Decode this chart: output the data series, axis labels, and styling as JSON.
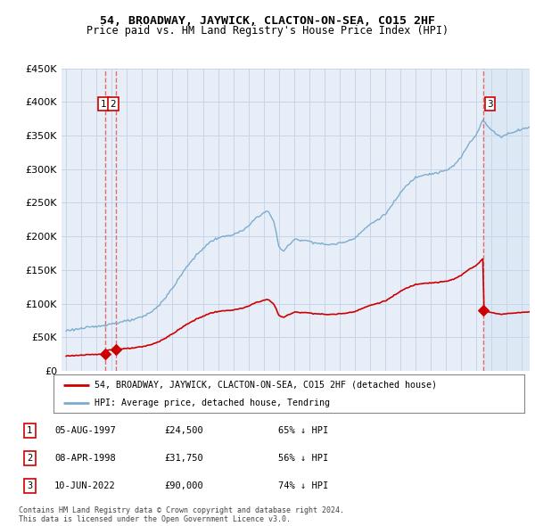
{
  "title": "54, BROADWAY, JAYWICK, CLACTON-ON-SEA, CO15 2HF",
  "subtitle": "Price paid vs. HM Land Registry's House Price Index (HPI)",
  "legend_label_red": "54, BROADWAY, JAYWICK, CLACTON-ON-SEA, CO15 2HF (detached house)",
  "legend_label_blue": "HPI: Average price, detached house, Tendring",
  "transactions": [
    {
      "num": 1,
      "date_year": 1997.596,
      "price": 24500
    },
    {
      "num": 2,
      "date_year": 1998.271,
      "price": 31750
    },
    {
      "num": 3,
      "date_year": 2022.441,
      "price": 90000
    }
  ],
  "table_rows": [
    [
      "1",
      "05-AUG-1997",
      "£24,500",
      "65% ↓ HPI"
    ],
    [
      "2",
      "08-APR-1998",
      "£31,750",
      "56% ↓ HPI"
    ],
    [
      "3",
      "10-JUN-2022",
      "£90,000",
      "74% ↓ HPI"
    ]
  ],
  "footer1": "Contains HM Land Registry data © Crown copyright and database right 2024.",
  "footer2": "This data is licensed under the Open Government Licence v3.0.",
  "red_color": "#cc0000",
  "blue_color": "#7aadce",
  "dashed_color": "#e06060",
  "background_color": "#e8eef8",
  "highlight_color": "#dde8f5",
  "grid_color": "#c8d4e8",
  "ylim": [
    0,
    450000
  ],
  "yticks": [
    0,
    50000,
    100000,
    150000,
    200000,
    250000,
    300000,
    350000,
    400000,
    450000
  ],
  "xlim_start": 1994.7,
  "xlim_end": 2025.5
}
